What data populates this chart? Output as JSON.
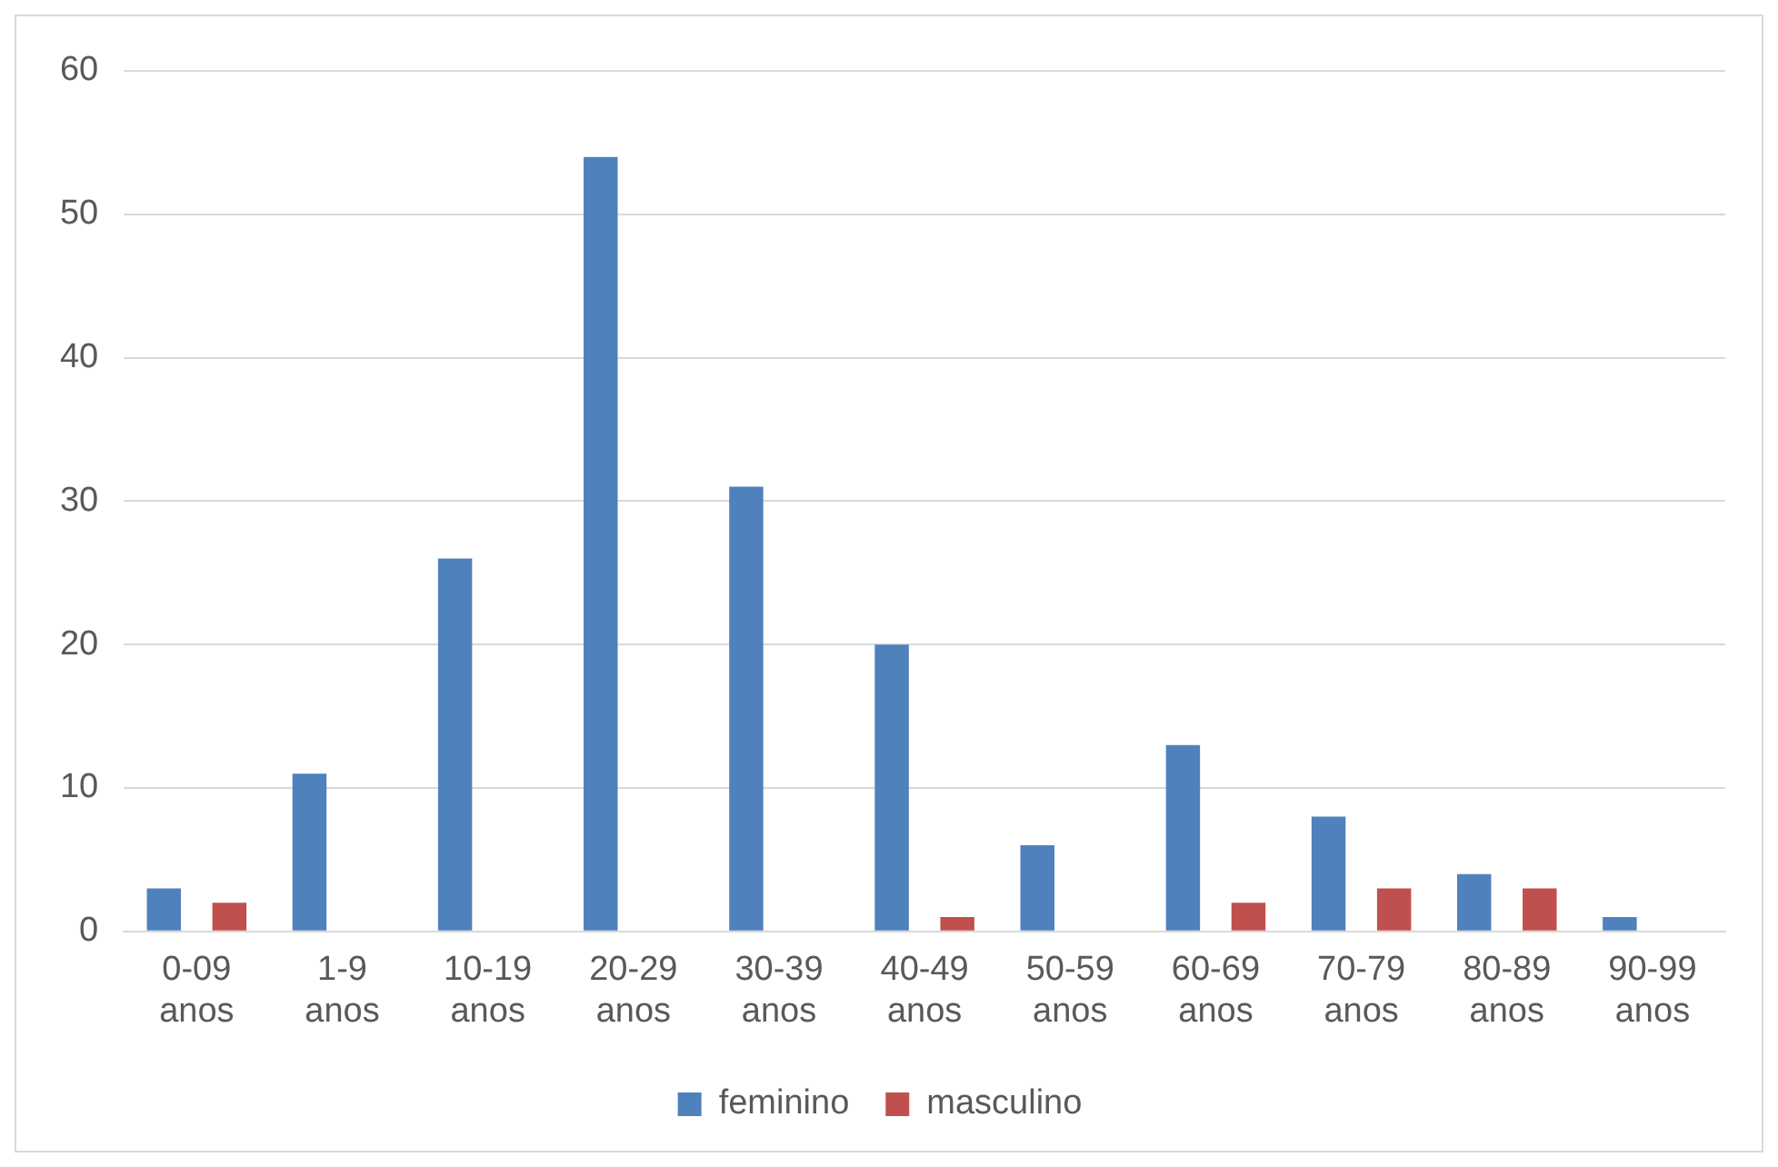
{
  "chart_data": {
    "type": "bar",
    "categories": [
      "0-09 anos",
      "1-9 anos",
      "10-19 anos",
      "20-29 anos",
      "30-39 anos",
      "40-49 anos",
      "50-59 anos",
      "60-69 anos",
      "70-79 anos",
      "80-89 anos",
      "90-99 anos"
    ],
    "series": [
      {
        "name": "feminino",
        "color": "#4f81bd",
        "values": [
          3,
          11,
          26,
          54,
          31,
          20,
          6,
          13,
          8,
          4,
          1
        ]
      },
      {
        "name": "masculino",
        "color": "#c0504d",
        "values": [
          2,
          0,
          0,
          0,
          0,
          1,
          0,
          2,
          3,
          3,
          0
        ]
      }
    ],
    "ylim": [
      0,
      60
    ],
    "yticks": [
      0,
      10,
      20,
      30,
      40,
      50,
      60
    ],
    "grid": "y",
    "legend": "bottom"
  }
}
